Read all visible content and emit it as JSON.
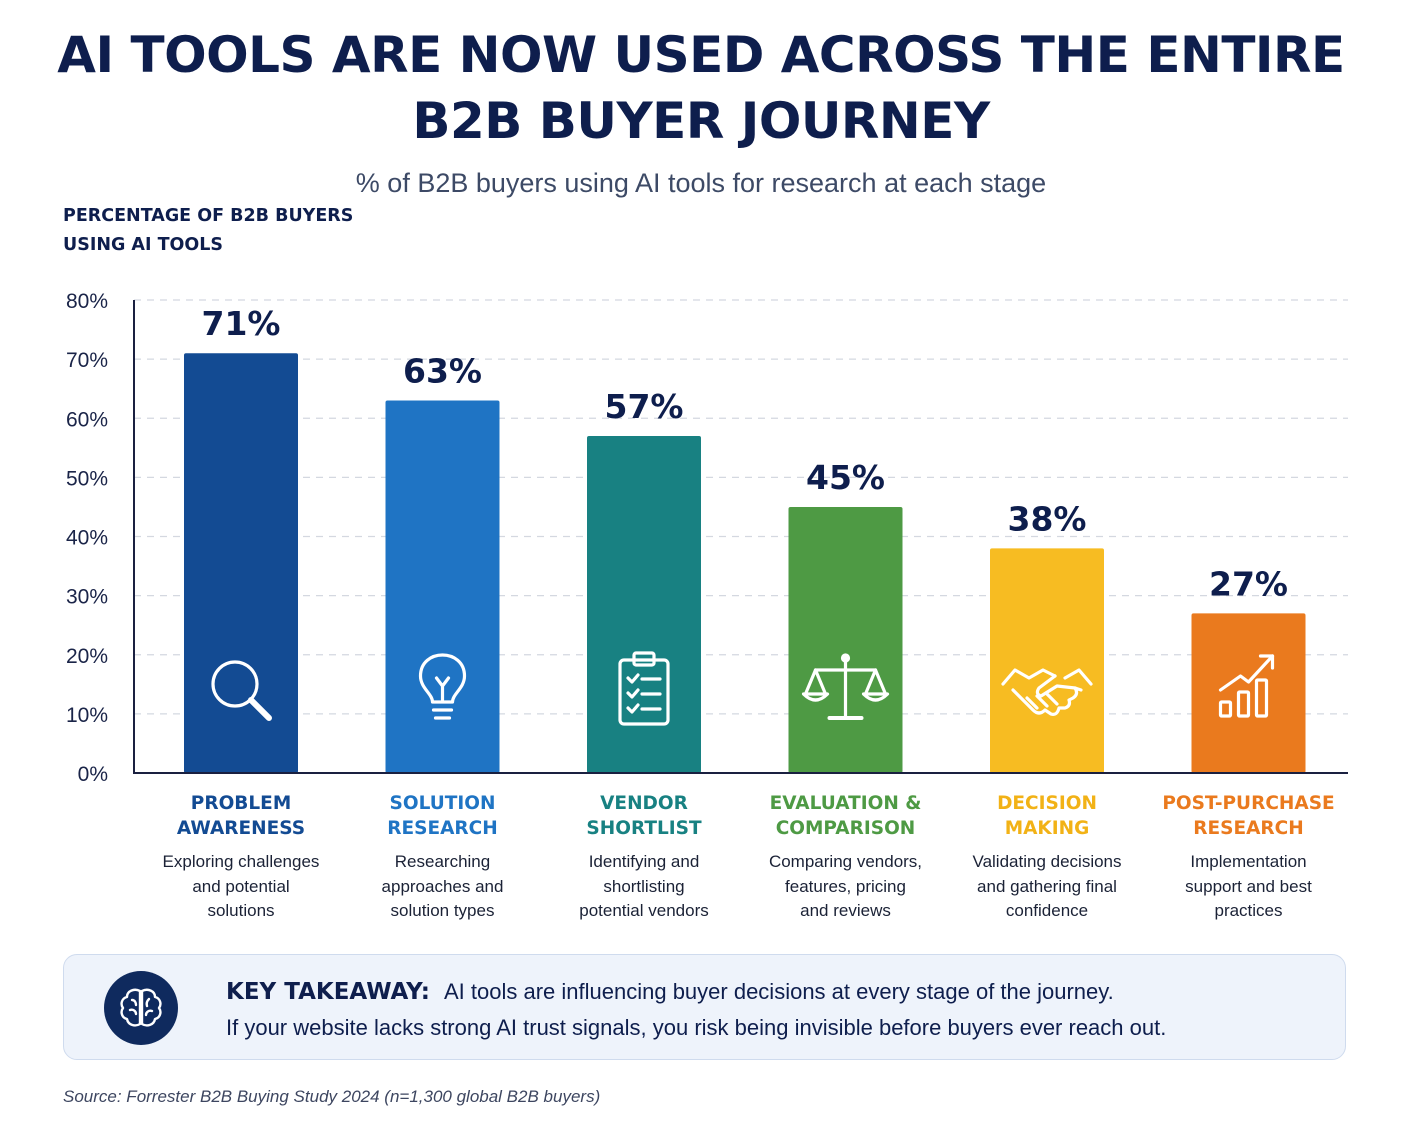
{
  "header": {
    "title_line1": "AI TOOLS ARE NOW USED ACROSS THE ENTIRE",
    "title_line2": "B2B BUYER JOURNEY",
    "subtitle": "% of B2B buyers using AI tools for research at each stage"
  },
  "chart_data": {
    "type": "bar",
    "ylabel_line1": "PERCENTAGE OF B2B BUYERS",
    "ylabel_line2": "USING AI TOOLS",
    "ylim": [
      0,
      80
    ],
    "yticks": [
      "0%",
      "10%",
      "20%",
      "30%",
      "40%",
      "50%",
      "60%",
      "70%",
      "80%"
    ],
    "grid": true,
    "categories": [
      {
        "name_line1": "PROBLEM",
        "name_line2": "AWARENESS",
        "value": 71,
        "value_label": "71%",
        "color": "#134b93",
        "icon": "magnifier-icon",
        "desc": [
          "Exploring challenges",
          "and potential",
          "solutions"
        ]
      },
      {
        "name_line1": "SOLUTION",
        "name_line2": "RESEARCH",
        "value": 63,
        "value_label": "63%",
        "color": "#1f74c4",
        "icon": "lightbulb-icon",
        "desc": [
          "Researching",
          "approaches and",
          "solution types"
        ]
      },
      {
        "name_line1": "VENDOR",
        "name_line2": "SHORTLIST",
        "value": 57,
        "value_label": "57%",
        "color": "#188182",
        "icon": "clipboard-checklist-icon",
        "desc": [
          "Identifying and",
          "shortlisting",
          "potential vendors"
        ]
      },
      {
        "name_line1": "EVALUATION &",
        "name_line2": "COMPARISON",
        "value": 45,
        "value_label": "45%",
        "color": "#4e9a44",
        "icon": "scales-icon",
        "desc": [
          "Comparing vendors,",
          "features, pricing",
          "and reviews"
        ]
      },
      {
        "name_line1": "DECISION",
        "name_line2": "MAKING",
        "value": 38,
        "value_label": "38%",
        "color": "#f7bc22",
        "icon": "handshake-icon",
        "desc": [
          "Validating decisions",
          "and gathering final",
          "confidence"
        ]
      },
      {
        "name_line1": "POST-PURCHASE",
        "name_line2": "RESEARCH",
        "value": 27,
        "value_label": "27%",
        "color": "#ea7a1e",
        "icon": "growth-chart-icon",
        "desc": [
          "Implementation",
          "support and best",
          "practices"
        ]
      }
    ],
    "label_colors": [
      "#134b93",
      "#1f74c4",
      "#188182",
      "#4e9a44",
      "#f2b216",
      "#ea7a1e"
    ]
  },
  "takeaway": {
    "heading": "KEY TAKEAWAY:",
    "line1": "AI tools are influencing buyer decisions at every stage of the journey.",
    "line2": "If your website lacks strong AI trust signals, you risk being invisible before buyers ever reach out.",
    "icon": "brain-icon"
  },
  "source": "Source: Forrester B2B Buying Study 2024 (n=1,300 global B2B buyers)"
}
